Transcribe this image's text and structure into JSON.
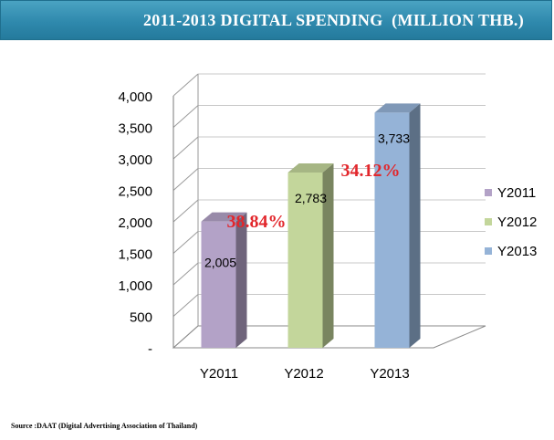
{
  "header": {
    "title": "2011-2013 DIGITAL SPENDING  (MILLION THB.)"
  },
  "chart_data": {
    "type": "bar",
    "title": "2011-2013 DIGITAL SPENDING  (MILLION THB.)",
    "categories": [
      "Y2011",
      "Y2012",
      "Y2013"
    ],
    "values": [
      2005,
      2783,
      3733
    ],
    "value_labels": [
      "2,005",
      "2,783",
      "3,733"
    ],
    "ylim": [
      0,
      4000
    ],
    "yticks": [
      0,
      500,
      1000,
      1500,
      2000,
      2500,
      3000,
      3500,
      4000
    ],
    "ytick_labels": [
      "-",
      "500",
      "1,000",
      "1,500",
      "2,000",
      "2,500",
      "3,000",
      "3,500",
      "4,000"
    ],
    "xlabel": "",
    "ylabel": "",
    "grid": true,
    "legend_position": "right",
    "legend": [
      "Y2011",
      "Y2012",
      "Y2013"
    ],
    "colors": [
      "#b3a2c7",
      "#c3d69b",
      "#95b3d7"
    ],
    "annotations": [
      "38.84%",
      "34.12%"
    ],
    "annotation_color": "#e2262b"
  },
  "source": "Source :DAAT (Digital Advertising Association of Thailand)"
}
